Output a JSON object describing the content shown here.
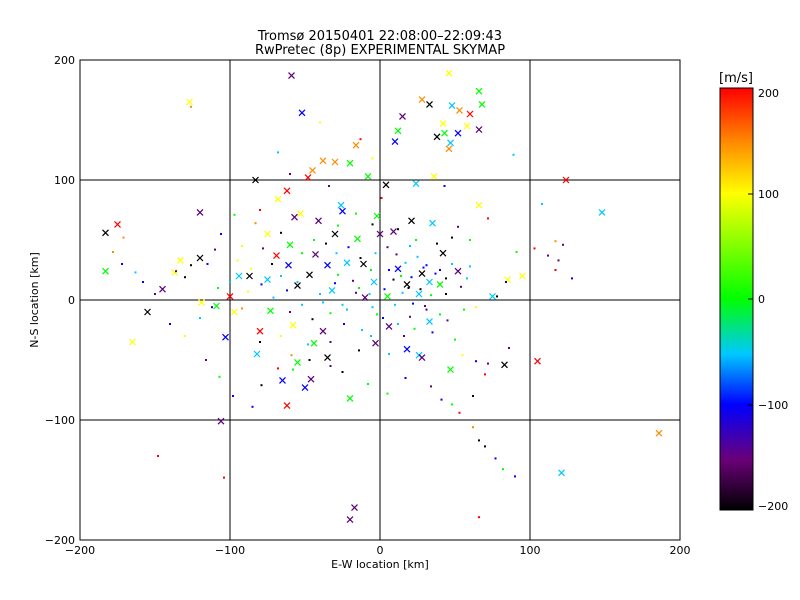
{
  "chart_data": {
    "type": "scatter",
    "title": "Tromsø 20150401 22:08:00–22:09:43",
    "subtitle": "RwPretec (8p) EXPERIMENTAL SKYMAP",
    "xlabel": "E-W location [km]",
    "ylabel": "N-S location [km]",
    "xlim": [
      -200,
      200
    ],
    "ylim": [
      -200,
      200
    ],
    "x_ticks": [
      "−200",
      "−100",
      "0",
      "100",
      "200"
    ],
    "y_ticks": [
      "−200",
      "−100",
      "0",
      "100",
      "200"
    ],
    "grid": true,
    "colorbar": {
      "label": "[m/s]",
      "range": [
        -200,
        200
      ],
      "ticks": [
        "200",
        "100",
        "0",
        "−100",
        "−200"
      ],
      "colormap": "rainbow: black(-200) → purple → blue(-100) → cyan → green(0) → yellow(100) → orange → red(200)"
    },
    "series": [
      {
        "marker": "x",
        "points": [
          [
            -59,
            187
          ],
          [
            46,
            189
          ],
          [
            66,
            174
          ],
          [
            -127,
            165
          ],
          [
            28,
            167
          ],
          [
            33,
            163
          ],
          [
            48,
            162
          ],
          [
            53,
            158
          ],
          [
            60,
            155
          ],
          [
            68,
            163
          ],
          [
            15,
            153
          ],
          [
            42,
            147
          ],
          [
            58,
            145
          ],
          [
            52,
            139
          ],
          [
            43,
            139
          ],
          [
            38,
            136
          ],
          [
            12,
            141
          ],
          [
            66,
            142
          ],
          [
            10,
            132
          ],
          [
            47,
            131
          ],
          [
            46,
            126
          ],
          [
            -16,
            129
          ],
          [
            -52,
            156
          ],
          [
            -38,
            116
          ],
          [
            -30,
            115
          ],
          [
            -20,
            114
          ],
          [
            -45,
            108
          ],
          [
            -48,
            102
          ],
          [
            -8,
            103
          ],
          [
            4,
            96
          ],
          [
            24,
            97
          ],
          [
            -62,
            91
          ],
          [
            -83,
            100
          ],
          [
            -68,
            84
          ],
          [
            124,
            100
          ],
          [
            -120,
            73
          ],
          [
            148,
            73
          ],
          [
            -183,
            56
          ],
          [
            -175,
            63
          ],
          [
            -133,
            33
          ],
          [
            -137,
            23
          ],
          [
            -183,
            24
          ],
          [
            -145,
            9
          ],
          [
            -155,
            -10
          ],
          [
            -165,
            -35
          ],
          [
            -106,
            -101
          ],
          [
            -62,
            -88
          ],
          [
            -82,
            -45
          ],
          [
            -35,
            -48
          ],
          [
            -55,
            -52
          ],
          [
            -20,
            -82
          ],
          [
            -50,
            -73
          ],
          [
            -65,
            -67
          ],
          [
            -46,
            -66
          ],
          [
            -103,
            -31
          ],
          [
            -109,
            -5
          ],
          [
            -100,
            3
          ],
          [
            -73,
            -9
          ],
          [
            -80,
            -26
          ],
          [
            -38,
            -26
          ],
          [
            18,
            -41
          ],
          [
            26,
            -46
          ],
          [
            28,
            -48
          ],
          [
            -3,
            -36
          ],
          [
            6,
            -22
          ],
          [
            33,
            -18
          ],
          [
            47,
            -58
          ],
          [
            83,
            -54
          ],
          [
            105,
            -51
          ],
          [
            186,
            -111
          ],
          [
            121,
            -144
          ],
          [
            -17,
            -173
          ],
          [
            -20,
            -183
          ],
          [
            -87,
            20
          ],
          [
            -69,
            37
          ],
          [
            -61,
            29
          ],
          [
            -55,
            12
          ],
          [
            -32,
            8
          ],
          [
            -22,
            31
          ],
          [
            -11,
            30
          ],
          [
            -15,
            51
          ],
          [
            0,
            55
          ],
          [
            9,
            57
          ],
          [
            -2,
            70
          ],
          [
            21,
            66
          ],
          [
            35,
            64
          ],
          [
            42,
            39
          ],
          [
            28,
            22
          ],
          [
            33,
            15
          ],
          [
            40,
            13
          ],
          [
            18,
            13
          ],
          [
            12,
            26
          ],
          [
            5,
            3
          ],
          [
            -30,
            55
          ],
          [
            -41,
            66
          ],
          [
            -57,
            69
          ],
          [
            -75,
            55
          ],
          [
            -75,
            17
          ],
          [
            -94,
            20
          ],
          [
            -43,
            38
          ],
          [
            -35,
            29
          ],
          [
            -47,
            21
          ],
          [
            -60,
            46
          ],
          [
            -53,
            72
          ],
          [
            -25,
            74
          ],
          [
            -26,
            79
          ],
          [
            36,
            103
          ],
          [
            66,
            79
          ],
          [
            95,
            20
          ],
          [
            85,
            17
          ],
          [
            -119,
            -2
          ],
          [
            -4,
            15
          ],
          [
            -10,
            2
          ],
          [
            26,
            5
          ],
          [
            -97,
            -10
          ],
          [
            -58,
            -21
          ],
          [
            -44,
            -36
          ],
          [
            52,
            24
          ],
          [
            75,
            3
          ],
          [
            -120,
            35
          ]
        ]
      },
      {
        "marker": "dot",
        "points": [
          [
            -126,
            161
          ],
          [
            -13,
            134
          ],
          [
            -68,
            123
          ],
          [
            -40,
            148
          ],
          [
            -5,
            118
          ],
          [
            89,
            121
          ],
          [
            43,
            95
          ],
          [
            -80,
            75
          ],
          [
            108,
            80
          ],
          [
            -60,
            105
          ],
          [
            -34,
            95
          ],
          [
            1,
            85
          ],
          [
            -92,
            45
          ],
          [
            -83,
            64
          ],
          [
            -106,
            55
          ],
          [
            -110,
            42
          ],
          [
            -115,
            30
          ],
          [
            -126,
            29
          ],
          [
            -130,
            19
          ],
          [
            -136,
            24
          ],
          [
            -163,
            23
          ],
          [
            -171,
            52
          ],
          [
            -97,
            71
          ],
          [
            -28,
            62
          ],
          [
            -16,
            72
          ],
          [
            -5,
            63
          ],
          [
            12,
            59
          ],
          [
            20,
            45
          ],
          [
            48,
            52
          ],
          [
            52,
            61
          ],
          [
            60,
            50
          ],
          [
            72,
            68
          ],
          [
            91,
            40
          ],
          [
            103,
            43
          ],
          [
            112,
            37
          ],
          [
            117,
            49
          ],
          [
            122,
            46
          ],
          [
            119,
            33
          ],
          [
            128,
            18
          ],
          [
            117,
            25
          ],
          [
            84,
            15
          ],
          [
            60,
            28
          ],
          [
            54,
            11
          ],
          [
            44,
            5
          ],
          [
            64,
            -6
          ],
          [
            78,
            3
          ],
          [
            56,
            -8
          ],
          [
            45,
            -17
          ],
          [
            30,
            -5
          ],
          [
            40,
            -12
          ],
          [
            23,
            -24
          ],
          [
            35,
            -27
          ],
          [
            50,
            -33
          ],
          [
            55,
            -46
          ],
          [
            64,
            -51
          ],
          [
            72,
            -53
          ],
          [
            86,
            -40
          ],
          [
            70,
            -62
          ],
          [
            62,
            -80
          ],
          [
            53,
            -94
          ],
          [
            62,
            -106
          ],
          [
            66,
            -117
          ],
          [
            70,
            -122
          ],
          [
            77,
            -132
          ],
          [
            82,
            -141
          ],
          [
            90,
            -147
          ],
          [
            66,
            -181
          ],
          [
            -104,
            -148
          ],
          [
            -148,
            -130
          ],
          [
            -116,
            -50
          ],
          [
            -107,
            -64
          ],
          [
            -98,
            -80
          ],
          [
            -85,
            -89
          ],
          [
            -79,
            -71
          ],
          [
            -68,
            -57
          ],
          [
            -59,
            -46
          ],
          [
            -48,
            -37
          ],
          [
            -33,
            -55
          ],
          [
            -25,
            -60
          ],
          [
            -8,
            -70
          ],
          [
            5,
            -78
          ],
          [
            17,
            -65
          ],
          [
            34,
            -72
          ],
          [
            41,
            -83
          ],
          [
            48,
            -87
          ],
          [
            -12,
            -25
          ],
          [
            -2,
            -12
          ],
          [
            10,
            -4
          ],
          [
            20,
            -14
          ],
          [
            -6,
            25
          ],
          [
            -18,
            16
          ],
          [
            -28,
            21
          ],
          [
            -40,
            5
          ],
          [
            -52,
            -4
          ],
          [
            -62,
            8
          ],
          [
            -71,
            2
          ],
          [
            -79,
            13
          ],
          [
            -88,
            7
          ],
          [
            -92,
            -7
          ],
          [
            -86,
            26
          ],
          [
            -95,
            33
          ],
          [
            -78,
            43
          ],
          [
            -66,
            56
          ],
          [
            -52,
            39
          ],
          [
            -44,
            50
          ],
          [
            -36,
            47
          ],
          [
            -29,
            39
          ],
          [
            -21,
            44
          ],
          [
            -13,
            35
          ],
          [
            -3,
            39
          ],
          [
            5,
            44
          ],
          [
            11,
            38
          ],
          [
            17,
            31
          ],
          [
            25,
            36
          ],
          [
            31,
            29
          ],
          [
            37,
            22
          ],
          [
            44,
            18
          ],
          [
            48,
            30
          ],
          [
            38,
            47
          ],
          [
            24,
            50
          ],
          [
            3,
            9
          ],
          [
            9,
            17
          ],
          [
            15,
            6
          ],
          [
            21,
            19
          ],
          [
            27,
            9
          ],
          [
            34,
            4
          ],
          [
            -7,
            5
          ],
          [
            -16,
            6
          ],
          [
            -25,
            -4
          ],
          [
            -33,
            -11
          ],
          [
            -45,
            -16
          ],
          [
            -55,
            15
          ],
          [
            -66,
            20
          ],
          [
            -72,
            30
          ],
          [
            -60,
            -10
          ],
          [
            -38,
            -2
          ],
          [
            -30,
            14
          ],
          [
            -22,
            -8
          ],
          [
            -14,
            10
          ],
          [
            -5,
            -6
          ],
          [
            2,
            -15
          ],
          [
            12,
            -20
          ],
          [
            22,
            -3
          ],
          [
            31,
            -8
          ],
          [
            6,
            25
          ],
          [
            14,
            20
          ],
          [
            19,
            10
          ],
          [
            29,
            27
          ],
          [
            40,
            25
          ],
          [
            58,
            18
          ],
          [
            -100,
            15
          ],
          [
            -108,
            10
          ],
          [
            -112,
            -6
          ],
          [
            -120,
            -15
          ],
          [
            -130,
            -30
          ],
          [
            -140,
            -20
          ],
          [
            -150,
            5
          ],
          [
            -158,
            15
          ],
          [
            -172,
            30
          ],
          [
            -178,
            40
          ],
          [
            -66,
            -30
          ],
          [
            -58,
            -58
          ],
          [
            -47,
            -50
          ],
          [
            -33,
            -35
          ],
          [
            -24,
            -20
          ],
          [
            -14,
            -42
          ],
          [
            -6,
            -30
          ],
          [
            6,
            -45
          ],
          [
            16,
            -30
          ],
          [
            -80,
            -35
          ]
        ]
      }
    ]
  }
}
